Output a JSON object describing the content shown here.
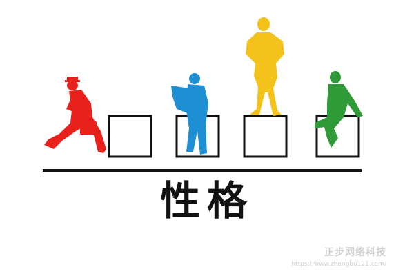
{
  "title": "性格",
  "watermark": {
    "name": "正步网络科技",
    "url": "https://www.zhengbu121.com/"
  },
  "figures": [
    {
      "name": "red-walking-man",
      "color": "#e8211d"
    },
    {
      "name": "blue-reading-man",
      "color": "#1e8fd3"
    },
    {
      "name": "yellow-standing-man",
      "color": "#f3c21b"
    },
    {
      "name": "green-sitting-man",
      "color": "#2e9b38"
    }
  ]
}
